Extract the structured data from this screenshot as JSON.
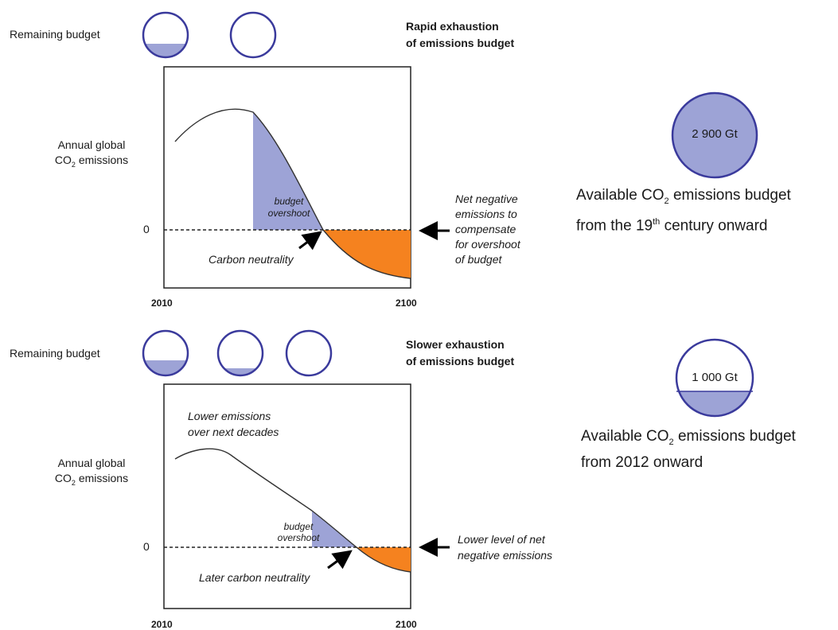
{
  "colors": {
    "budget_fill": "#9da3d6",
    "circle_stroke": "#3a3a9c",
    "negative_fill": "#f5821f",
    "curve": "#333333"
  },
  "top_panel": {
    "remaining_budget_label": "Remaining budget",
    "gauge_fill_levels": [
      0.4,
      0.0
    ],
    "title_line1": "Rapid exhaustion",
    "title_line2": "of emissions budget",
    "ylabel_line1": "Annual global",
    "ylabel_line2": "CO",
    "ylabel_sub": "2",
    "ylabel_line2_end": " emissions",
    "zero_label": "0",
    "overshoot_line1": "budget",
    "overshoot_line2": "overshoot",
    "neutrality_label": "Carbon neutrality",
    "side_note": [
      "Net negative",
      "emissions to",
      "compensate",
      "for overshoot",
      "of budget"
    ],
    "x_start": "2010",
    "x_end": "2100"
  },
  "bottom_panel": {
    "remaining_budget_label": "Remaining budget",
    "gauge_fill_levels": [
      0.4,
      0.15,
      0.0
    ],
    "title_line1": "Slower exhaustion",
    "title_line2": "of emissions budget",
    "ylabel_line1": "Annual global",
    "ylabel_line2": "CO",
    "ylabel_sub": "2",
    "ylabel_line2_end": " emissions",
    "zero_label": "0",
    "lower_emissions_line1": "Lower emissions",
    "lower_emissions_line2": "over next decades",
    "overshoot_line1": "budget",
    "overshoot_line2": "overshoot",
    "neutrality_label": "Later carbon neutrality",
    "side_note": [
      "Lower level of net",
      "negative emissions"
    ],
    "x_start": "2010",
    "x_end": "2100"
  },
  "budget_19th": {
    "circle_label": "2 900 Gt",
    "fill_level": 1.0,
    "caption_line1_pre": "Available CO",
    "caption_line1_sub": "2",
    "caption_line1_post": " emissions budget",
    "caption_line2_pre": "from the 19",
    "caption_line2_sup": "th",
    "caption_line2_post": " century onward"
  },
  "budget_2012": {
    "circle_label": "1 000 Gt",
    "fill_level": 0.34,
    "caption_line1_pre": "Available CO",
    "caption_line1_sub": "2",
    "caption_line1_post": " emissions budget",
    "caption_line2": "from 2012 onward"
  }
}
